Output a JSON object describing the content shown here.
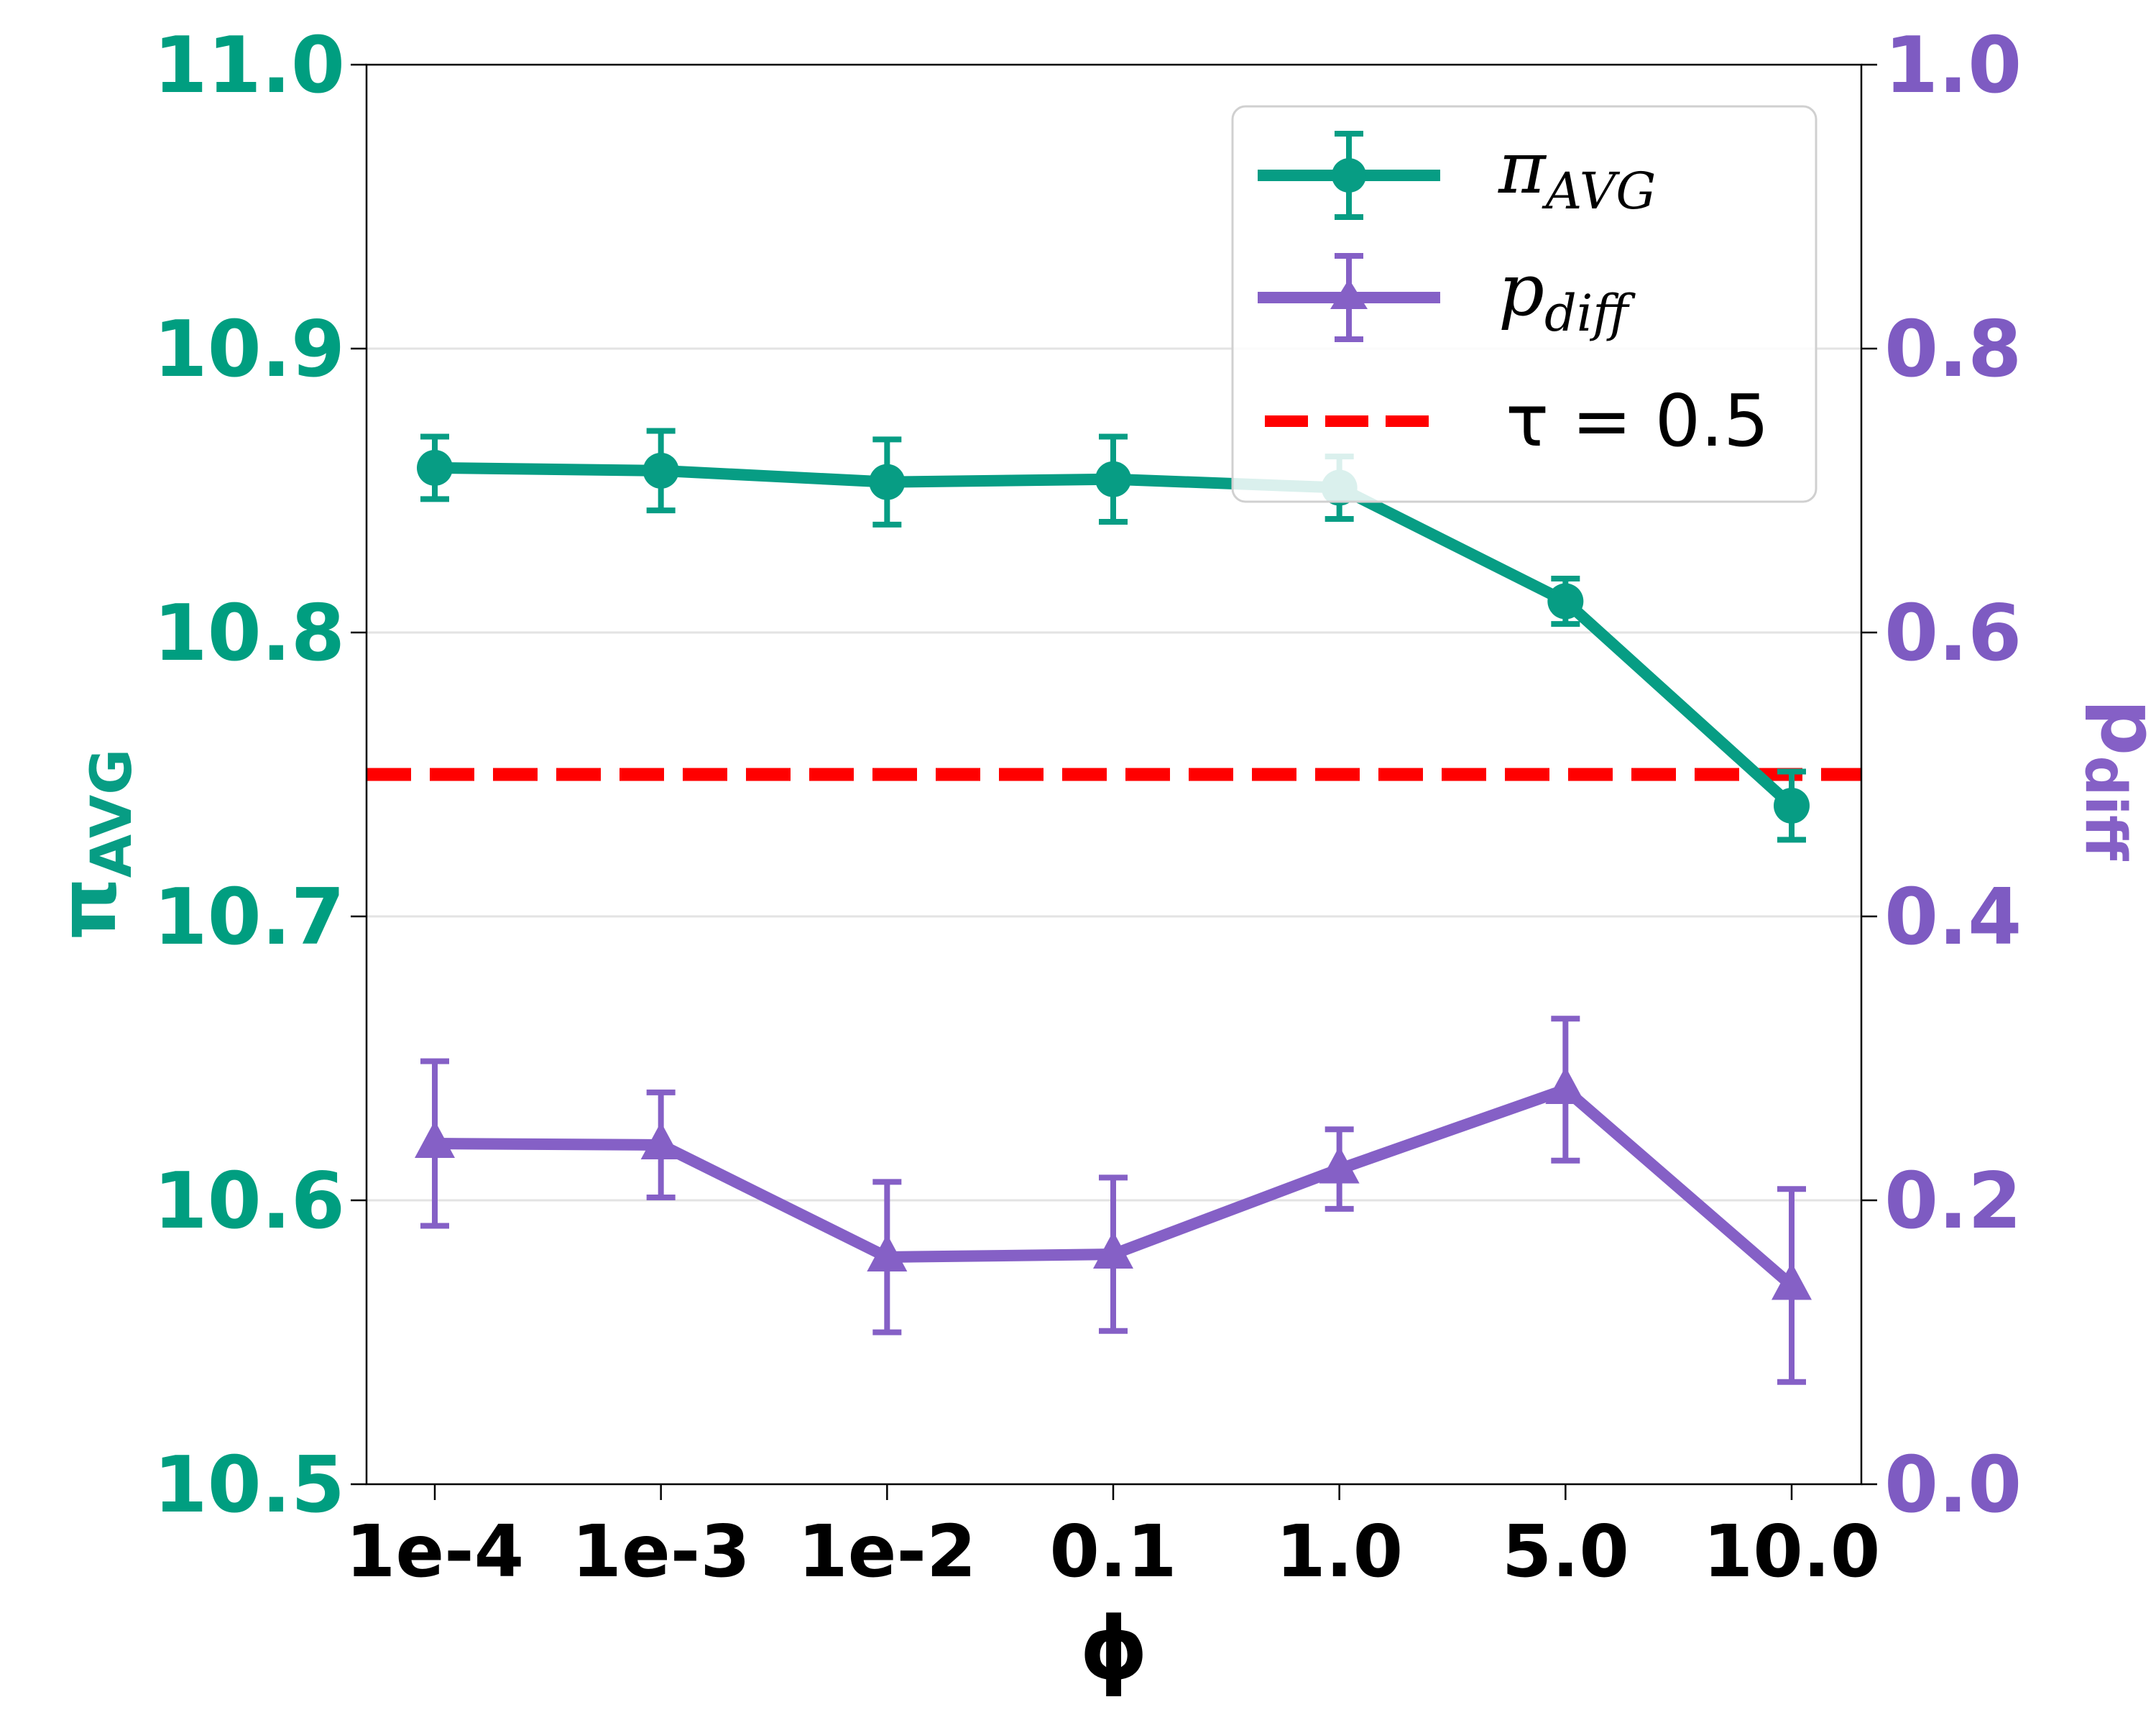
{
  "chart_data": {
    "type": "line",
    "title": "",
    "xlabel": "ϕ",
    "categories": [
      "1e-4",
      "1e-3",
      "1e-2",
      "0.1",
      "1.0",
      "5.0",
      "10.0"
    ],
    "left_axis": {
      "label_main": "π",
      "label_sub": "AVG",
      "ylim": [
        10.5,
        11.0
      ],
      "ticks": [
        10.5,
        10.6,
        10.7,
        10.8,
        10.9,
        11.0
      ],
      "tick_labels": [
        "10.5",
        "10.6",
        "10.7",
        "10.8",
        "10.9",
        "11.0"
      ],
      "color": "#009e80"
    },
    "right_axis": {
      "label_main": "p",
      "label_sub": "diff",
      "ylim": [
        0.0,
        1.0
      ],
      "ticks": [
        0.0,
        0.2,
        0.4,
        0.6,
        0.8,
        1.0
      ],
      "tick_labels": [
        "0.0",
        "0.2",
        "0.4",
        "0.6",
        "0.8",
        "1.0"
      ],
      "color": "#7e5bc2"
    },
    "series": [
      {
        "name": "π_AVG",
        "axis": "left",
        "marker": "circle",
        "color": "#079d84",
        "values": [
          10.858,
          10.857,
          10.853,
          10.854,
          10.851,
          10.811,
          10.739
        ],
        "errors": [
          0.011,
          0.014,
          0.015,
          0.015,
          0.011,
          0.008,
          0.012
        ]
      },
      {
        "name": "p_diff",
        "axis": "right",
        "marker": "triangle",
        "color": "#8560c6",
        "values": [
          0.24,
          0.239,
          0.16,
          0.162,
          0.222,
          0.278,
          0.14
        ],
        "errors": [
          0.058,
          0.037,
          0.053,
          0.054,
          0.028,
          0.05,
          0.068
        ]
      }
    ],
    "reference_line": {
      "name": "τ = 0.5",
      "axis": "right",
      "value": 0.5,
      "color": "#ff0000",
      "style": "dashed"
    },
    "grid": "horizontal",
    "legend": {
      "position": "top-right",
      "entries": [
        {
          "main": "π",
          "sub": "AVG"
        },
        {
          "main": "p",
          "sub": "diff"
        },
        {
          "main": "τ = 0.5",
          "sub": ""
        }
      ]
    }
  }
}
